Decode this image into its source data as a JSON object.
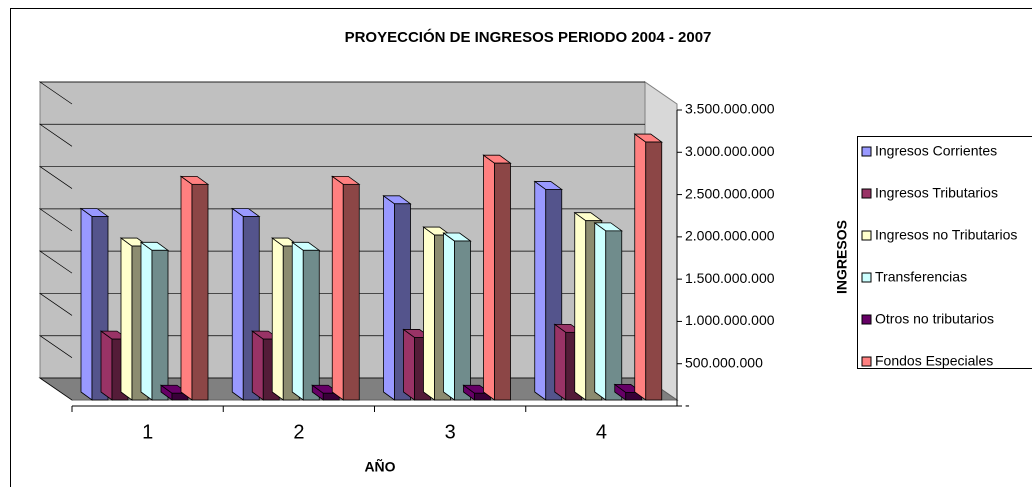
{
  "chart_data": {
    "type": "bar3d",
    "title": "PROYECCIÓN DE INGRESOS PERIODO 2004 - 2007",
    "x_label": "AÑO",
    "y_label": "INGRESOS",
    "categories": [
      "1",
      "2",
      "3",
      "4"
    ],
    "series": [
      {
        "name": "Ingresos Corrientes",
        "color": "#9999ff",
        "values": [
          2170000000,
          2170000000,
          2320000000,
          2490000000
        ]
      },
      {
        "name": "Ingresos Tributarios",
        "color": "#993366",
        "values": [
          720000000,
          720000000,
          740000000,
          800000000
        ]
      },
      {
        "name": "Ingresos no Tributarios",
        "color": "#ffffcc",
        "values": [
          1820000000,
          1820000000,
          1950000000,
          2120000000
        ]
      },
      {
        "name": "Transferencias",
        "color": "#ccffff",
        "values": [
          1770000000,
          1770000000,
          1880000000,
          2000000000
        ]
      },
      {
        "name": "Otros no tributarios",
        "color": "#660066",
        "values": [
          80000000,
          80000000,
          80000000,
          90000000
        ]
      },
      {
        "name": "Fondos Especiales",
        "color": "#ff8080",
        "values": [
          2550000000,
          2550000000,
          2800000000,
          3050000000
        ]
      }
    ],
    "ylim": [
      0,
      3500000000
    ],
    "yticks": [
      {
        "value": 0,
        "label": "-"
      },
      {
        "value": 500000000,
        "label": "500.000.000"
      },
      {
        "value": 1000000000,
        "label": "1.000.000.000"
      },
      {
        "value": 1500000000,
        "label": "1.500.000.000"
      },
      {
        "value": 2000000000,
        "label": "2.000.000.000"
      },
      {
        "value": 2500000000,
        "label": "2.500.000.000"
      },
      {
        "value": 3000000000,
        "label": "3.000.000.000"
      },
      {
        "value": 3500000000,
        "label": "3.500.000.000"
      }
    ],
    "grid": true,
    "legend": "right"
  }
}
